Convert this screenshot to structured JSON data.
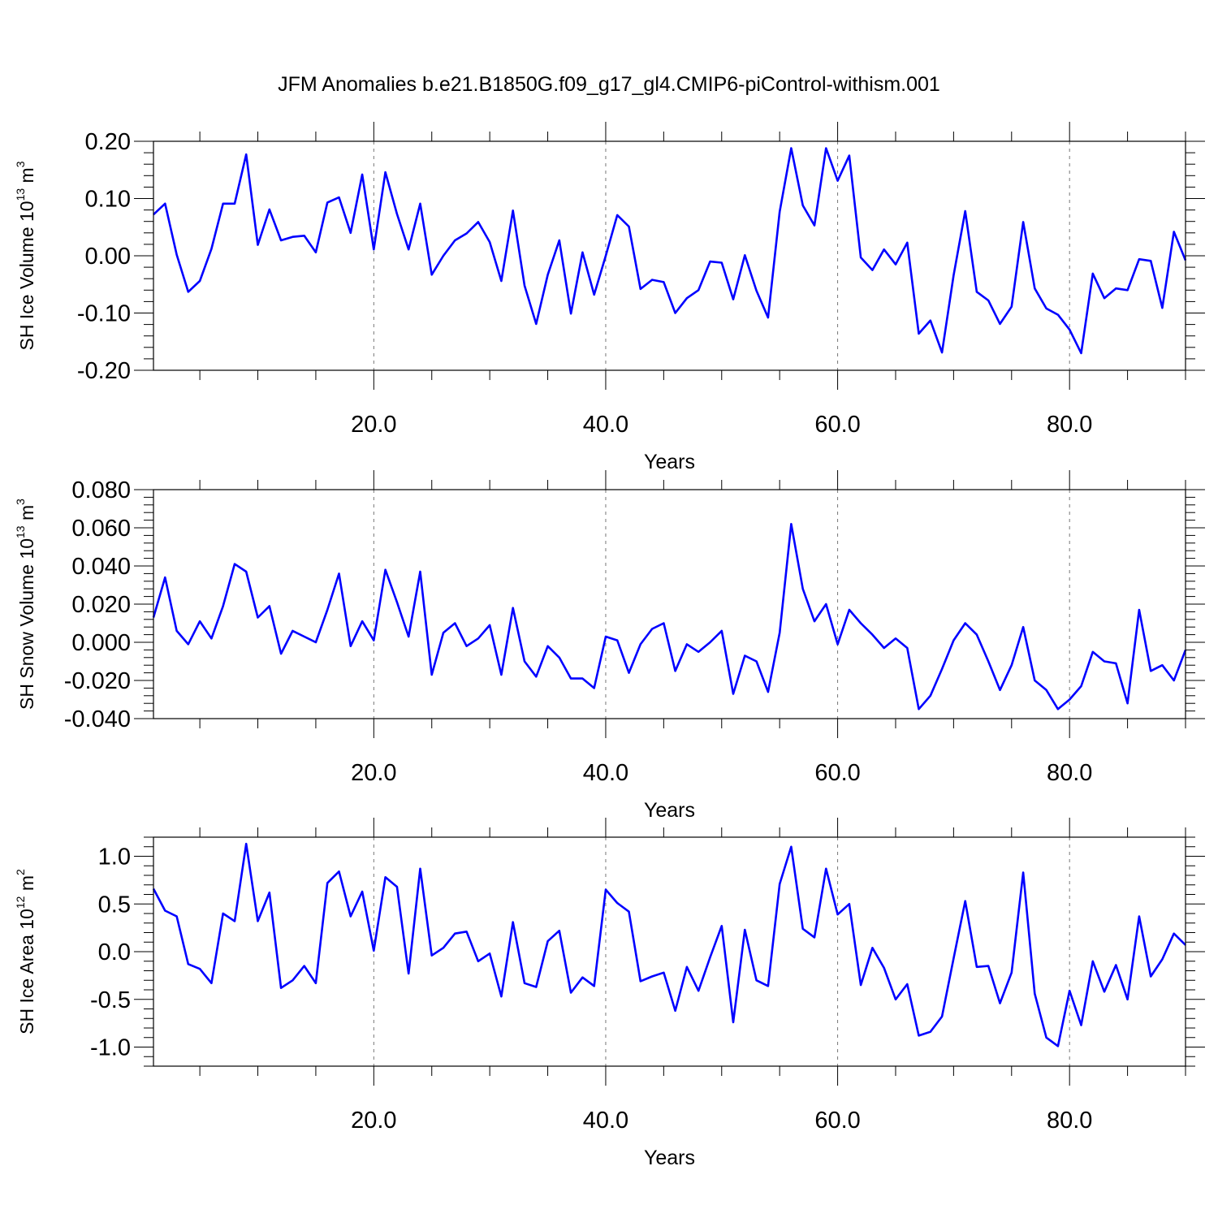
{
  "title": "JFM Anomalies b.e21.B1850G.f09_g17_gl4.CMIP6-piControl-withism.001",
  "line_color": "#0000ff",
  "chart_data": [
    {
      "type": "line",
      "title": "JFM Anomalies b.e21.B1850G.f09_g17_gl4.CMIP6-piControl-withism.001",
      "xlabel": "Years",
      "ylabel_main": "SH Ice Volume 10",
      "ylabel_exp": "13",
      "ylabel_unit": " m",
      "ylabel_unit_exp": "3",
      "xlim": [
        1,
        90
      ],
      "ylim": [
        -0.2,
        0.2
      ],
      "xticks": [
        20,
        40,
        60,
        80
      ],
      "xtick_labels": [
        "20.0",
        "40.0",
        "60.0",
        "80.0"
      ],
      "yticks": [
        0.2,
        0.1,
        0,
        -0.1,
        -0.2
      ],
      "ytick_labels": [
        "0.20",
        "0.10",
        "0.00",
        "-0.10",
        "-0.20"
      ],
      "grid": "vertical dashed at major x ticks",
      "x": [
        1,
        2,
        3,
        4,
        5,
        6,
        7,
        8,
        9,
        10,
        11,
        12,
        13,
        14,
        15,
        16,
        17,
        18,
        19,
        20,
        21,
        22,
        23,
        24,
        25,
        26,
        27,
        28,
        29,
        30,
        31,
        32,
        33,
        34,
        35,
        36,
        37,
        38,
        39,
        40,
        41,
        42,
        43,
        44,
        45,
        46,
        47,
        48,
        49,
        50,
        51,
        52,
        53,
        54,
        55,
        56,
        57,
        58,
        59,
        60,
        61,
        62,
        63,
        64,
        65,
        66,
        67,
        68,
        69,
        70,
        71,
        72,
        73,
        74,
        75,
        76,
        77,
        78,
        79,
        80,
        81,
        82,
        83,
        84,
        85,
        86,
        87,
        88,
        89,
        90
      ],
      "values": [
        0.072,
        0.091,
        0.002,
        -0.063,
        -0.044,
        0.012,
        0.091,
        0.091,
        0.177,
        0.019,
        0.081,
        0.027,
        0.033,
        0.035,
        0.006,
        0.093,
        0.102,
        0.04,
        0.142,
        0.011,
        0.146,
        0.073,
        0.011,
        0.091,
        -0.033,
        0.0,
        0.027,
        0.039,
        0.059,
        0.024,
        -0.044,
        0.079,
        -0.052,
        -0.119,
        -0.033,
        0.027,
        -0.101,
        0.006,
        -0.068,
        0.0,
        0.071,
        0.051,
        -0.058,
        -0.042,
        -0.046,
        -0.1,
        -0.074,
        -0.06,
        -0.01,
        -0.012,
        -0.076,
        0.001,
        -0.061,
        -0.108,
        0.077,
        0.188,
        0.088,
        0.053,
        0.188,
        0.131,
        0.175,
        -0.003,
        -0.025,
        0.011,
        -0.015,
        0.023,
        -0.136,
        -0.113,
        -0.169,
        -0.034,
        0.078,
        -0.063,
        -0.078,
        -0.119,
        -0.089,
        0.059,
        -0.057,
        -0.092,
        -0.103,
        -0.129,
        -0.17,
        -0.031,
        -0.074,
        -0.057,
        -0.06,
        -0.006,
        -0.009,
        -0.091,
        0.042,
        -0.008
      ]
    },
    {
      "type": "line",
      "xlabel": "Years",
      "ylabel_main": "SH Snow Volume 10",
      "ylabel_exp": "13",
      "ylabel_unit": " m",
      "ylabel_unit_exp": "3",
      "xlim": [
        1,
        90
      ],
      "ylim": [
        -0.04,
        0.08
      ],
      "xticks": [
        20,
        40,
        60,
        80
      ],
      "xtick_labels": [
        "20.0",
        "40.0",
        "60.0",
        "80.0"
      ],
      "yticks": [
        0.08,
        0.06,
        0.04,
        0.02,
        0,
        -0.02,
        -0.04
      ],
      "ytick_labels": [
        "0.080",
        "0.060",
        "0.040",
        "0.020",
        "0.000",
        "-0.020",
        "-0.040"
      ],
      "grid": "vertical dashed at major x ticks",
      "x": [
        1,
        2,
        3,
        4,
        5,
        6,
        7,
        8,
        9,
        10,
        11,
        12,
        13,
        14,
        15,
        16,
        17,
        18,
        19,
        20,
        21,
        22,
        23,
        24,
        25,
        26,
        27,
        28,
        29,
        30,
        31,
        32,
        33,
        34,
        35,
        36,
        37,
        38,
        39,
        40,
        41,
        42,
        43,
        44,
        45,
        46,
        47,
        48,
        49,
        50,
        51,
        52,
        53,
        54,
        55,
        56,
        57,
        58,
        59,
        60,
        61,
        62,
        63,
        64,
        65,
        66,
        67,
        68,
        69,
        70,
        71,
        72,
        73,
        74,
        75,
        76,
        77,
        78,
        79,
        80,
        81,
        82,
        83,
        84,
        85,
        86,
        87,
        88,
        89,
        90
      ],
      "values": [
        0.013,
        0.034,
        0.006,
        -0.001,
        0.011,
        0.002,
        0.019,
        0.041,
        0.037,
        0.013,
        0.019,
        -0.006,
        0.006,
        0.003,
        0.0,
        0.017,
        0.036,
        -0.002,
        0.011,
        0.001,
        0.038,
        0.021,
        0.003,
        0.037,
        -0.017,
        0.005,
        0.01,
        -0.002,
        0.002,
        0.009,
        -0.017,
        0.018,
        -0.01,
        -0.018,
        -0.002,
        -0.008,
        -0.019,
        -0.019,
        -0.024,
        0.003,
        0.001,
        -0.016,
        -0.001,
        0.007,
        0.01,
        -0.015,
        -0.001,
        -0.005,
        0.0,
        0.006,
        -0.027,
        -0.007,
        -0.01,
        -0.026,
        0.005,
        0.062,
        0.028,
        0.011,
        0.02,
        -0.001,
        0.017,
        0.01,
        0.004,
        -0.003,
        0.002,
        -0.003,
        -0.035,
        -0.028,
        -0.014,
        0.001,
        0.01,
        0.004,
        -0.01,
        -0.025,
        -0.012,
        0.008,
        -0.02,
        -0.025,
        -0.035,
        -0.03,
        -0.023,
        -0.005,
        -0.01,
        -0.011,
        -0.032,
        0.017,
        -0.015,
        -0.012,
        -0.02,
        -0.004
      ]
    },
    {
      "type": "line",
      "xlabel": "Years",
      "ylabel_main": "SH Ice Area 10",
      "ylabel_exp": "12",
      "ylabel_unit": " m",
      "ylabel_unit_exp": "2",
      "xlim": [
        1,
        90
      ],
      "ylim": [
        -1.2,
        1.2
      ],
      "xticks": [
        20,
        40,
        60,
        80
      ],
      "xtick_labels": [
        "20.0",
        "40.0",
        "60.0",
        "80.0"
      ],
      "yticks": [
        1.0,
        0.5,
        0,
        -0.5,
        -1.0
      ],
      "ytick_labels": [
        "1.0",
        "0.5",
        "0.0",
        "-0.5",
        "-1.0"
      ],
      "grid": "vertical dashed at major x ticks",
      "x": [
        1,
        2,
        3,
        4,
        5,
        6,
        7,
        8,
        9,
        10,
        11,
        12,
        13,
        14,
        15,
        16,
        17,
        18,
        19,
        20,
        21,
        22,
        23,
        24,
        25,
        26,
        27,
        28,
        29,
        30,
        31,
        32,
        33,
        34,
        35,
        36,
        37,
        38,
        39,
        40,
        41,
        42,
        43,
        44,
        45,
        46,
        47,
        48,
        49,
        50,
        51,
        52,
        53,
        54,
        55,
        56,
        57,
        58,
        59,
        60,
        61,
        62,
        63,
        64,
        65,
        66,
        67,
        68,
        69,
        70,
        71,
        72,
        73,
        74,
        75,
        76,
        77,
        78,
        79,
        80,
        81,
        82,
        83,
        84,
        85,
        86,
        87,
        88,
        89,
        90
      ],
      "values": [
        0.66,
        0.43,
        0.37,
        -0.13,
        -0.18,
        -0.33,
        0.4,
        0.32,
        1.13,
        0.32,
        0.62,
        -0.38,
        -0.3,
        -0.15,
        -0.33,
        0.72,
        0.84,
        0.37,
        0.63,
        0.01,
        0.78,
        0.68,
        -0.23,
        0.87,
        -0.04,
        0.04,
        0.19,
        0.21,
        -0.1,
        -0.02,
        -0.47,
        0.31,
        -0.33,
        -0.37,
        0.11,
        0.22,
        -0.43,
        -0.27,
        -0.36,
        0.65,
        0.51,
        0.42,
        -0.31,
        -0.26,
        -0.22,
        -0.62,
        -0.16,
        -0.41,
        -0.06,
        0.27,
        -0.74,
        0.23,
        -0.3,
        -0.36,
        0.71,
        1.1,
        0.24,
        0.15,
        0.87,
        0.39,
        0.5,
        -0.35,
        0.04,
        -0.17,
        -0.5,
        -0.34,
        -0.88,
        -0.84,
        -0.68,
        -0.07,
        0.53,
        -0.16,
        -0.15,
        -0.54,
        -0.22,
        0.83,
        -0.44,
        -0.9,
        -0.99,
        -0.41,
        -0.77,
        -0.1,
        -0.42,
        -0.14,
        -0.5,
        0.37,
        -0.26,
        -0.08,
        0.19,
        0.07
      ]
    }
  ]
}
